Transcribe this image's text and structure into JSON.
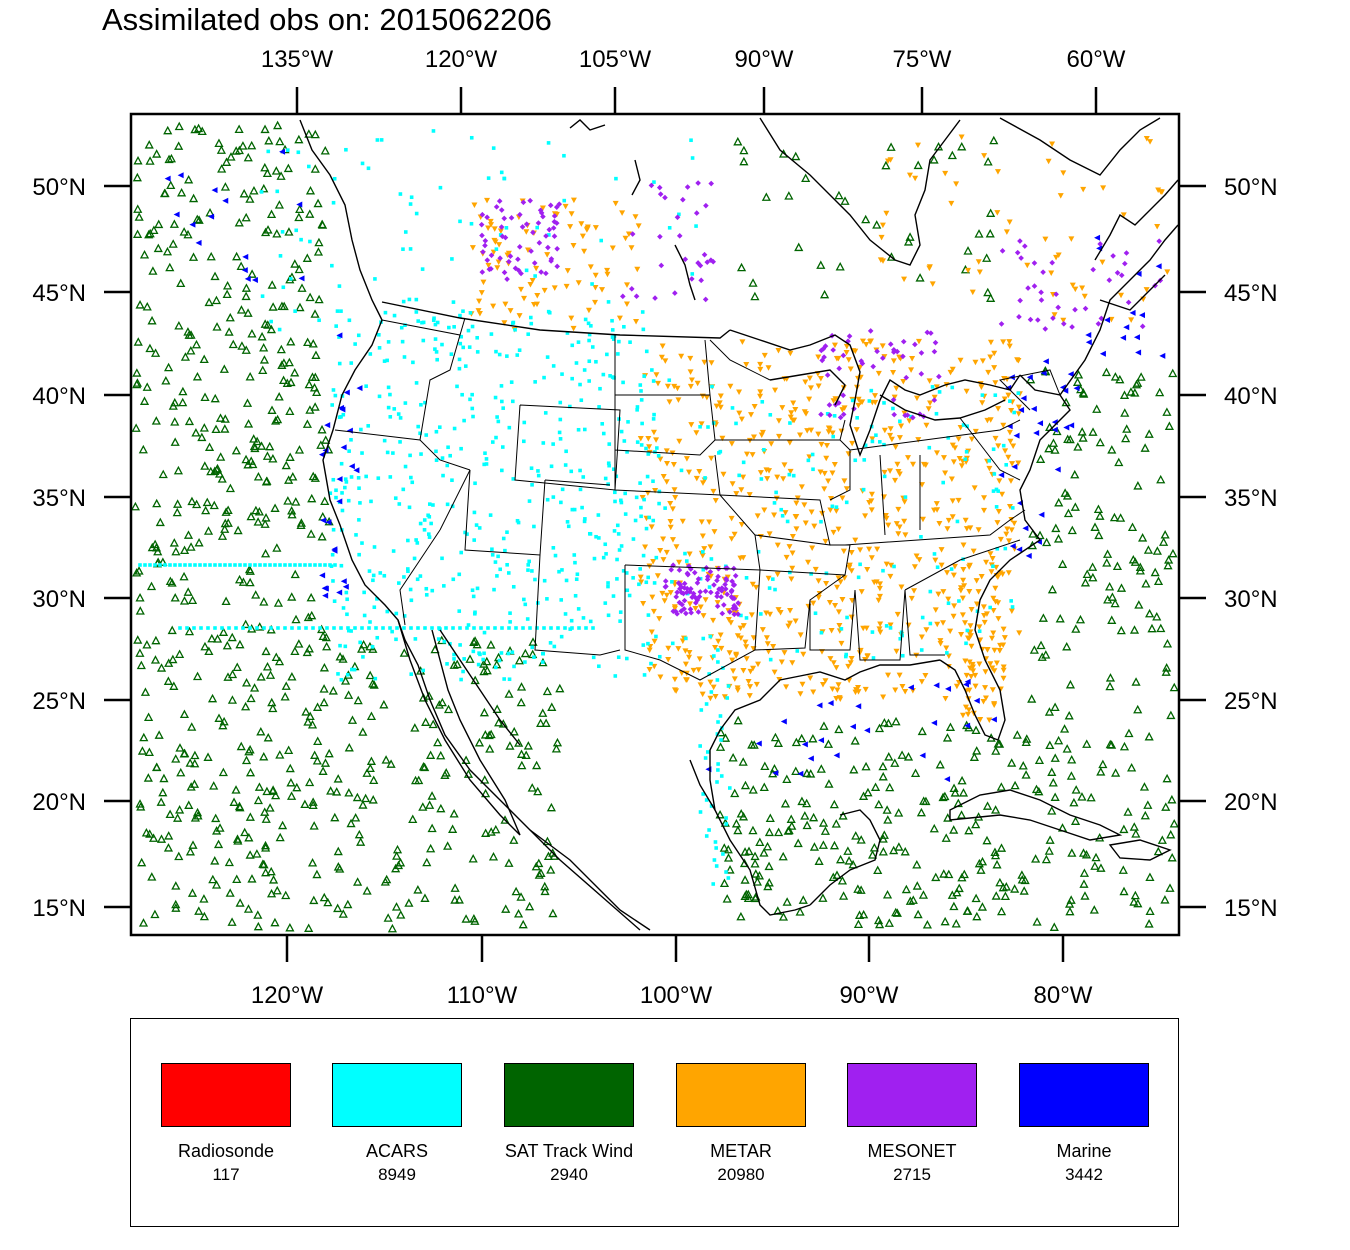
{
  "title": "Assimilated obs on: 2015062206",
  "top_axis_labels": [
    "135°W",
    "120°W",
    "105°W",
    "90°W",
    "75°W",
    "60°W"
  ],
  "bottom_axis_labels": [
    "120°W",
    "110°W",
    "100°W",
    "90°W",
    "80°W"
  ],
  "left_axis_labels": [
    "50°N",
    "45°N",
    "40°N",
    "35°N",
    "30°N",
    "25°N",
    "20°N",
    "15°N"
  ],
  "right_axis_labels": [
    "50°N",
    "45°N",
    "40°N",
    "35°N",
    "30°N",
    "25°N",
    "20°N",
    "15°N"
  ],
  "legend": [
    {
      "name": "Radiosonde",
      "count": "117",
      "color": "#ff0000"
    },
    {
      "name": "ACARS",
      "count": "8949",
      "color": "#00ffff"
    },
    {
      "name": "SAT Track Wind",
      "count": "2940",
      "color": "#006400"
    },
    {
      "name": "METAR",
      "count": "20980",
      "color": "#ffa500"
    },
    {
      "name": "MESONET",
      "count": "2715",
      "color": "#a020f0"
    },
    {
      "name": "Marine",
      "count": "3442",
      "color": "#0000ff"
    }
  ],
  "colors": {
    "sat_track_wind": "#006400",
    "acars": "#00ffff",
    "metar": "#ffa500",
    "mesonet": "#a020f0",
    "marine": "#0000ff",
    "radiosonde": "#ff0000",
    "coastline": "#000000"
  }
}
